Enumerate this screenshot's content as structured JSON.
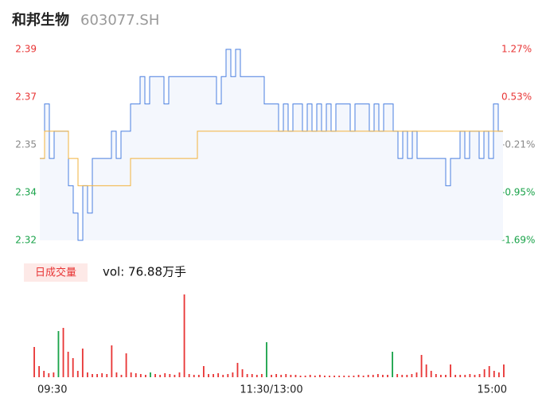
{
  "chart_data": [
    {
      "type": "line",
      "title": "和邦生物",
      "subtitle": "603077.SH",
      "ylim": [
        2.32,
        2.39
      ],
      "yticks": [
        2.39,
        {
          "value": 2.3725,
          "label": "2.37"
        },
        {
          "value": 2.355,
          "label": "2.35"
        },
        {
          "value": 2.3375,
          "label": "2.34"
        },
        2.32
      ],
      "y2lim": [
        -1.69,
        1.27
      ],
      "y2ticks": [
        {
          "value": 1.27,
          "label": "1.27%"
        },
        {
          "value": 0.53,
          "label": "0.53%"
        },
        {
          "value": -0.21,
          "label": "-0.21%"
        },
        {
          "value": -0.95,
          "label": "-0.95%"
        },
        {
          "value": -1.69,
          "label": "-1.69%"
        }
      ],
      "tick_colors": [
        "#e83535",
        "#e83535",
        "#888888",
        "#1aa34a",
        "#1aa34a"
      ],
      "xlim": [
        0,
        240
      ],
      "xticks": [
        {
          "value": 0,
          "label": "09:30"
        },
        {
          "value": 120,
          "label": "11:30/13:00"
        },
        {
          "value": 240,
          "label": "15:00"
        }
      ],
      "series": [
        {
          "name": "price",
          "color": "#4a7fe0",
          "values": [
            2.35,
            2.37,
            2.35,
            2.36,
            2.36,
            2.36,
            2.34,
            2.33,
            2.32,
            2.34,
            2.33,
            2.35,
            2.35,
            2.35,
            2.35,
            2.36,
            2.35,
            2.36,
            2.36,
            2.37,
            2.37,
            2.38,
            2.37,
            2.38,
            2.38,
            2.38,
            2.37,
            2.38,
            2.38,
            2.38,
            2.38,
            2.38,
            2.38,
            2.38,
            2.38,
            2.38,
            2.38,
            2.37,
            2.38,
            2.39,
            2.38,
            2.39,
            2.38,
            2.38,
            2.38,
            2.38,
            2.38,
            2.37,
            2.37,
            2.37,
            2.36,
            2.37,
            2.36,
            2.37,
            2.37,
            2.36,
            2.37,
            2.36,
            2.37,
            2.36,
            2.37,
            2.36,
            2.37,
            2.37,
            2.37,
            2.36,
            2.37,
            2.37,
            2.37,
            2.36,
            2.37,
            2.36,
            2.37,
            2.37,
            2.36,
            2.35,
            2.36,
            2.35,
            2.36,
            2.35,
            2.35,
            2.35,
            2.35,
            2.35,
            2.35,
            2.34,
            2.35,
            2.35,
            2.36,
            2.35,
            2.36,
            2.36,
            2.35,
            2.36,
            2.35,
            2.37,
            2.36,
            2.36
          ]
        },
        {
          "name": "average",
          "color": "#f2b33d",
          "values": [
            2.35,
            2.36,
            2.36,
            2.36,
            2.36,
            2.36,
            2.35,
            2.35,
            2.34,
            2.34,
            2.34,
            2.34,
            2.34,
            2.34,
            2.34,
            2.34,
            2.34,
            2.34,
            2.34,
            2.35,
            2.35,
            2.35,
            2.35,
            2.35,
            2.35,
            2.35,
            2.35,
            2.35,
            2.35,
            2.35,
            2.35,
            2.35,
            2.35,
            2.36,
            2.36,
            2.36,
            2.36,
            2.36,
            2.36,
            2.36,
            2.36,
            2.36,
            2.36,
            2.36,
            2.36,
            2.36,
            2.36,
            2.36,
            2.36,
            2.36,
            2.36,
            2.36,
            2.36,
            2.36,
            2.36,
            2.36,
            2.36,
            2.36,
            2.36,
            2.36,
            2.36,
            2.36,
            2.36,
            2.36,
            2.36,
            2.36,
            2.36,
            2.36,
            2.36,
            2.36,
            2.36,
            2.36,
            2.36,
            2.36,
            2.36,
            2.36,
            2.36,
            2.36,
            2.36,
            2.36,
            2.36,
            2.36,
            2.36,
            2.36,
            2.36,
            2.36,
            2.36,
            2.36,
            2.36,
            2.36,
            2.36,
            2.36,
            2.36,
            2.36,
            2.36,
            2.36,
            2.36,
            2.36
          ]
        }
      ]
    },
    {
      "type": "bar",
      "title": "日成交量",
      "subtitle": "vol: 76.88万手",
      "values": [
        3800,
        1400,
        800,
        500,
        600,
        5800,
        6200,
        3200,
        2400,
        800,
        3600,
        600,
        400,
        400,
        500,
        400,
        4000,
        600,
        300,
        3000,
        600,
        500,
        400,
        300,
        600,
        400,
        300,
        500,
        400,
        300,
        600,
        10400,
        400,
        300,
        300,
        1400,
        400,
        400,
        500,
        300,
        400,
        600,
        1800,
        1000,
        400,
        400,
        300,
        400,
        4400,
        300,
        400,
        300,
        400,
        300,
        300,
        200,
        200,
        300,
        200,
        300,
        200,
        200,
        200,
        200,
        200,
        200,
        200,
        300,
        200,
        300,
        300,
        400,
        300,
        300,
        3200,
        400,
        300,
        300,
        400,
        600,
        2800,
        1600,
        800,
        400,
        300,
        300,
        1600,
        300,
        300,
        300,
        400,
        300,
        400,
        1000,
        1400,
        800,
        600,
        1600
      ],
      "colors": [
        "#e83535",
        "#e83535",
        "#e83535",
        "#e83535",
        "#e83535",
        "#1aa34a",
        "#e83535",
        "#e83535",
        "#e83535",
        "#e83535",
        "#e83535",
        "#e83535",
        "#e83535",
        "#e83535",
        "#e83535",
        "#e83535",
        "#e83535",
        "#e83535",
        "#e83535",
        "#e83535",
        "#e83535",
        "#e83535",
        "#e83535",
        "#e83535",
        "#1aa34a",
        "#e83535",
        "#e83535",
        "#e83535",
        "#e83535",
        "#e83535",
        "#e83535",
        "#e83535",
        "#e83535",
        "#e83535",
        "#e83535",
        "#e83535",
        "#e83535",
        "#e83535",
        "#e83535",
        "#e83535",
        "#e83535",
        "#e83535",
        "#e83535",
        "#e83535",
        "#e83535",
        "#e83535",
        "#e83535",
        "#e83535",
        "#1aa34a",
        "#e83535",
        "#e83535",
        "#e83535",
        "#e83535",
        "#e83535",
        "#e83535",
        "#e83535",
        "#e83535",
        "#e83535",
        "#e83535",
        "#e83535",
        "#e83535",
        "#e83535",
        "#e83535",
        "#e83535",
        "#e83535",
        "#e83535",
        "#e83535",
        "#e83535",
        "#e83535",
        "#e83535",
        "#e83535",
        "#e83535",
        "#e83535",
        "#e83535",
        "#1aa34a",
        "#e83535",
        "#e83535",
        "#e83535",
        "#e83535",
        "#e83535",
        "#e83535",
        "#e83535",
        "#e83535",
        "#e83535",
        "#e83535",
        "#e83535",
        "#e83535",
        "#e83535",
        "#e83535",
        "#e83535",
        "#e83535",
        "#e83535",
        "#e83535",
        "#e83535",
        "#e83535",
        "#e83535",
        "#e83535",
        "#e83535"
      ]
    }
  ]
}
